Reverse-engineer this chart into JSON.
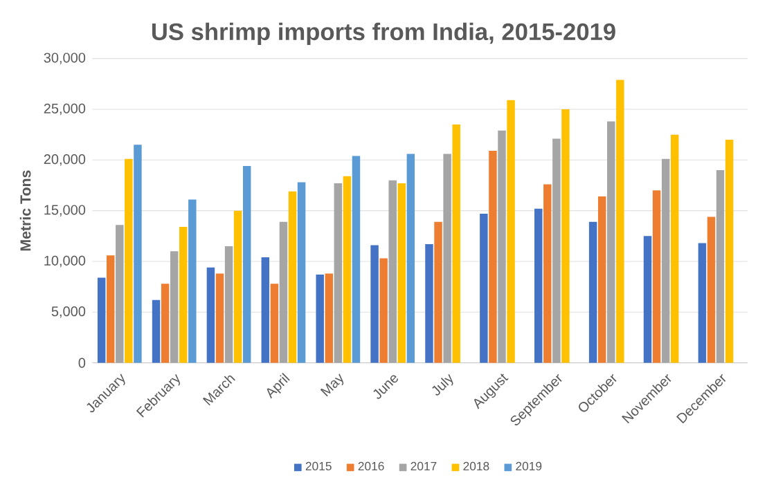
{
  "chart_data": {
    "type": "bar",
    "title": "US shrimp imports from India, 2015-2019",
    "ylabel": "Metric Tons",
    "categories": [
      "January",
      "February",
      "March",
      "April",
      "May",
      "June",
      "July",
      "August",
      "September",
      "October",
      "November",
      "December"
    ],
    "series": [
      {
        "name": "2015",
        "color": "#4472c4",
        "values": [
          8400,
          6200,
          9400,
          10400,
          8700,
          11600,
          11700,
          14700,
          15200,
          13900,
          12500,
          11800
        ]
      },
      {
        "name": "2016",
        "color": "#ed7d31",
        "values": [
          10600,
          7800,
          8800,
          7800,
          8800,
          10300,
          13900,
          20900,
          17600,
          16400,
          17000,
          14400
        ]
      },
      {
        "name": "2017",
        "color": "#a5a5a5",
        "values": [
          13600,
          11000,
          11500,
          13900,
          17700,
          18000,
          20600,
          22900,
          22100,
          23800,
          20100,
          19000
        ]
      },
      {
        "name": "2018",
        "color": "#ffc000",
        "values": [
          20100,
          13400,
          15000,
          16900,
          18400,
          17700,
          23500,
          25900,
          25000,
          27900,
          22500,
          22000
        ]
      },
      {
        "name": "2019",
        "color": "#5b9bd5",
        "values": [
          21500,
          16100,
          19400,
          17800,
          20400,
          20600,
          null,
          null,
          null,
          null,
          null,
          null
        ]
      }
    ],
    "ylim": [
      0,
      30000
    ],
    "yticks": [
      {
        "value": 0,
        "label": "0"
      },
      {
        "value": 5000,
        "label": "5,000"
      },
      {
        "value": 10000,
        "label": "10,000"
      },
      {
        "value": 15000,
        "label": "15,000"
      },
      {
        "value": 20000,
        "label": "20,000"
      },
      {
        "value": 25000,
        "label": "25,000"
      },
      {
        "value": 30000,
        "label": "30,000"
      }
    ],
    "grid": "y",
    "legend": "bottom"
  }
}
